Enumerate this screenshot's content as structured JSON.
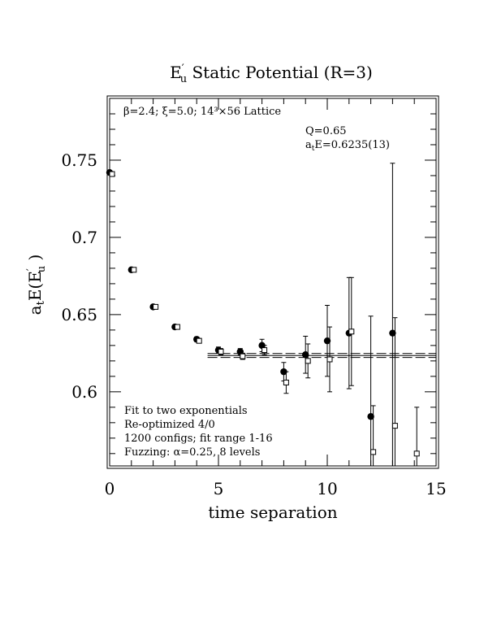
{
  "chart_data": {
    "type": "scatter",
    "title_main": "E",
    "title_prime": "′",
    "title_sub": "u",
    "title_rest": "  Static Potential (R=3)",
    "xlabel": "time separation",
    "ylabel_a": "a",
    "ylabel_t": "t",
    "ylabel_E": "E(E",
    "ylabel_prime": "′",
    "ylabel_u": "u",
    "ylabel_close": " )",
    "xlim": [
      0,
      15
    ],
    "ylim": [
      0.552,
      0.79
    ],
    "x_ticks": [
      0,
      5,
      10,
      15
    ],
    "x_tick_labels": [
      "0",
      "5",
      "10",
      "15"
    ],
    "y_ticks": [
      0.6,
      0.65,
      0.7,
      0.75
    ],
    "y_tick_labels": [
      "0.6",
      "0.65",
      "0.7",
      "0.75"
    ],
    "lattice_label": "β=2.4; ξ=5.0; 14³×56 Lattice",
    "fit_q": "Q=0.65",
    "fit_energy_a": "a",
    "fit_energy_t": "t",
    "fit_energy_rest": "E=0.6235(13)",
    "notes": [
      "Fit to two exponentials",
      "Re-optimized 4/0",
      "1200 configs; fit range 1-16",
      "Fuzzing: α=0.25, 8 levels"
    ],
    "fit_value": 0.6235,
    "fit_band": [
      0.6222,
      0.6248
    ],
    "series": [
      {
        "marker": "filled-circle",
        "points": [
          {
            "x": 0,
            "y": 0.742,
            "err": 0.001
          },
          {
            "x": 1,
            "y": 0.679,
            "err": 0.001
          },
          {
            "x": 2,
            "y": 0.655,
            "err": 0.001
          },
          {
            "x": 3,
            "y": 0.642,
            "err": 0.001
          },
          {
            "x": 4,
            "y": 0.634,
            "err": 0.0015
          },
          {
            "x": 5,
            "y": 0.627,
            "err": 0.002
          },
          {
            "x": 6,
            "y": 0.626,
            "err": 0.002
          },
          {
            "x": 7,
            "y": 0.63,
            "err": 0.004
          },
          {
            "x": 8,
            "y": 0.613,
            "err": 0.006
          },
          {
            "x": 9,
            "y": 0.624,
            "err": 0.012
          },
          {
            "x": 10,
            "y": 0.633,
            "err": 0.023
          },
          {
            "x": 11,
            "y": 0.638,
            "err": 0.036
          },
          {
            "x": 12,
            "y": 0.584,
            "err": 0.065
          },
          {
            "x": 13,
            "y": 0.638,
            "err": 0.11
          }
        ]
      },
      {
        "marker": "open-square",
        "points": [
          {
            "x": 0,
            "y": 0.741,
            "err": 0.001
          },
          {
            "x": 1,
            "y": 0.679,
            "err": 0.001
          },
          {
            "x": 2,
            "y": 0.655,
            "err": 0.001
          },
          {
            "x": 3,
            "y": 0.642,
            "err": 0.001
          },
          {
            "x": 4,
            "y": 0.633,
            "err": 0.0015
          },
          {
            "x": 5,
            "y": 0.626,
            "err": 0.002
          },
          {
            "x": 6,
            "y": 0.623,
            "err": 0.002
          },
          {
            "x": 7,
            "y": 0.627,
            "err": 0.003
          },
          {
            "x": 8,
            "y": 0.606,
            "err": 0.007
          },
          {
            "x": 9,
            "y": 0.62,
            "err": 0.011
          },
          {
            "x": 10,
            "y": 0.621,
            "err": 0.021
          },
          {
            "x": 11,
            "y": 0.639,
            "err": 0.035
          },
          {
            "x": 12,
            "y": 0.561,
            "err": 0.03
          },
          {
            "x": 13,
            "y": 0.578,
            "err": 0.07
          },
          {
            "x": 14,
            "y": 0.56,
            "err": 0.03
          }
        ]
      }
    ]
  }
}
